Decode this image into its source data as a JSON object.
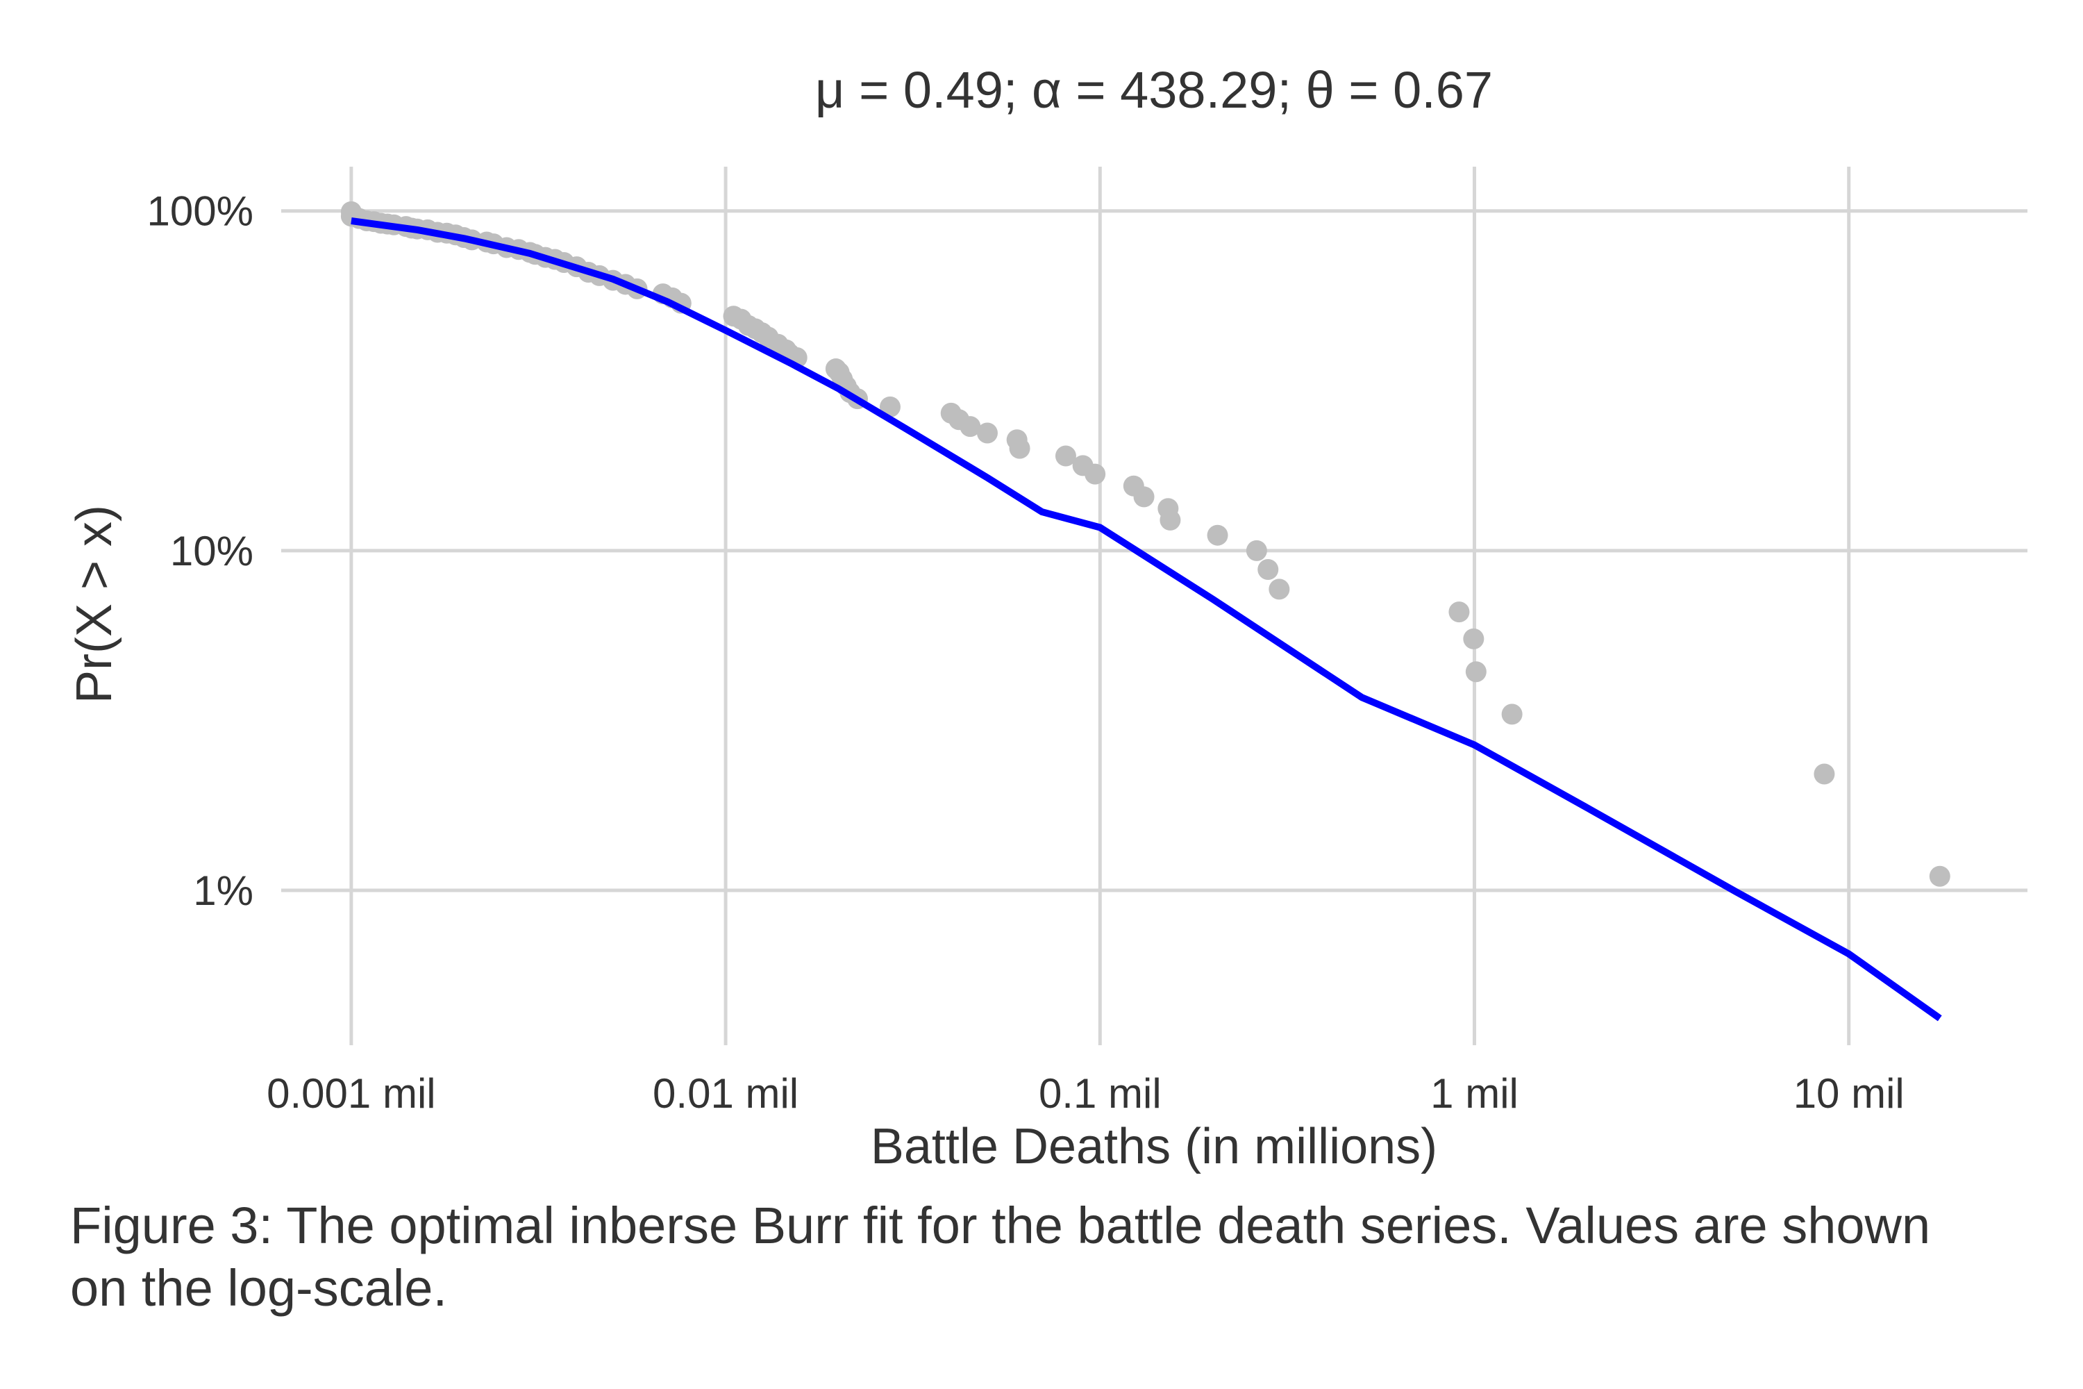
{
  "figure": {
    "caption": "Figure 3: The optimal inberse Burr fit for the battle death series. Values are shown on the log-scale."
  },
  "chart_data": {
    "type": "scatter",
    "title": "μ = 0.49; α = 438.29; θ = 0.67",
    "xlabel": "Battle Deaths (in millions)",
    "ylabel": "Pr(X > x)",
    "x_scale": "log",
    "y_scale": "log",
    "xlim": [
      0.00065,
      30
    ],
    "ylim": [
      0.0035,
      1.35
    ],
    "grid": true,
    "x_ticks": [
      {
        "value": 0.001,
        "label": "0.001 mil"
      },
      {
        "value": 0.01,
        "label": "0.01 mil"
      },
      {
        "value": 0.1,
        "label": "0.1 mil"
      },
      {
        "value": 1,
        "label": "1 mil"
      },
      {
        "value": 10,
        "label": "10 mil"
      }
    ],
    "y_ticks": [
      {
        "value": 1,
        "label": "100%"
      },
      {
        "value": 0.1,
        "label": "10%"
      },
      {
        "value": 0.01,
        "label": "1%"
      }
    ],
    "colors": {
      "points": "#bebebe",
      "fit": "#0000ff",
      "grid": "#d6d6d6",
      "text": "#333333"
    },
    "series": [
      {
        "kind": "points",
        "x": [
          0.001,
          0.001,
          0.00105,
          0.0011,
          0.00115,
          0.0012,
          0.00125,
          0.0013,
          0.0014,
          0.00145,
          0.0015,
          0.0016,
          0.0017,
          0.0018,
          0.0019,
          0.002,
          0.0021,
          0.0023,
          0.0024,
          0.0026,
          0.0028,
          0.003,
          0.0031,
          0.0033,
          0.0035,
          0.0037,
          0.004,
          0.0043,
          0.0046,
          0.005,
          0.0054,
          0.0058,
          0.0068,
          0.0072,
          0.0076,
          0.0105,
          0.011,
          0.0115,
          0.012,
          0.0125,
          0.013,
          0.0138,
          0.0145,
          0.0148,
          0.0155,
          0.0197,
          0.0201,
          0.0205,
          0.021,
          0.0215,
          0.0225,
          0.0275,
          0.04,
          0.042,
          0.045,
          0.05,
          0.06,
          0.061,
          0.081,
          0.09,
          0.097,
          0.123,
          0.131,
          0.152,
          0.154,
          0.206,
          0.262,
          0.281,
          0.301,
          0.91,
          0.995,
          1.01,
          1.26,
          8.6,
          17.5
        ],
        "y": [
          0.995,
          0.965,
          0.95,
          0.935,
          0.93,
          0.92,
          0.915,
          0.91,
          0.9,
          0.89,
          0.885,
          0.88,
          0.865,
          0.86,
          0.85,
          0.835,
          0.822,
          0.81,
          0.8,
          0.78,
          0.77,
          0.755,
          0.745,
          0.73,
          0.72,
          0.705,
          0.685,
          0.66,
          0.645,
          0.625,
          0.608,
          0.59,
          0.57,
          0.555,
          0.535,
          0.49,
          0.48,
          0.46,
          0.45,
          0.438,
          0.425,
          0.405,
          0.39,
          0.38,
          0.37,
          0.343,
          0.335,
          0.32,
          0.305,
          0.292,
          0.28,
          0.265,
          0.254,
          0.243,
          0.232,
          0.222,
          0.212,
          0.2,
          0.19,
          0.178,
          0.168,
          0.155,
          0.144,
          0.133,
          0.123,
          0.111,
          0.1,
          0.088,
          0.077,
          0.066,
          0.055,
          0.044,
          0.033,
          0.022,
          0.011
        ]
      },
      {
        "kind": "fit-line",
        "x": [
          0.001,
          0.0015,
          0.002,
          0.003,
          0.005,
          0.007,
          0.01,
          0.015,
          0.02,
          0.03,
          0.05,
          0.07,
          0.1,
          0.2,
          0.5,
          1,
          2,
          5,
          10,
          17.5
        ],
        "y": [
          0.935,
          0.88,
          0.83,
          0.75,
          0.63,
          0.54,
          0.445,
          0.355,
          0.3,
          0.23,
          0.164,
          0.13,
          0.117,
          0.072,
          0.037,
          0.0268,
          0.0175,
          0.0099,
          0.0065,
          0.0042
        ]
      }
    ]
  }
}
